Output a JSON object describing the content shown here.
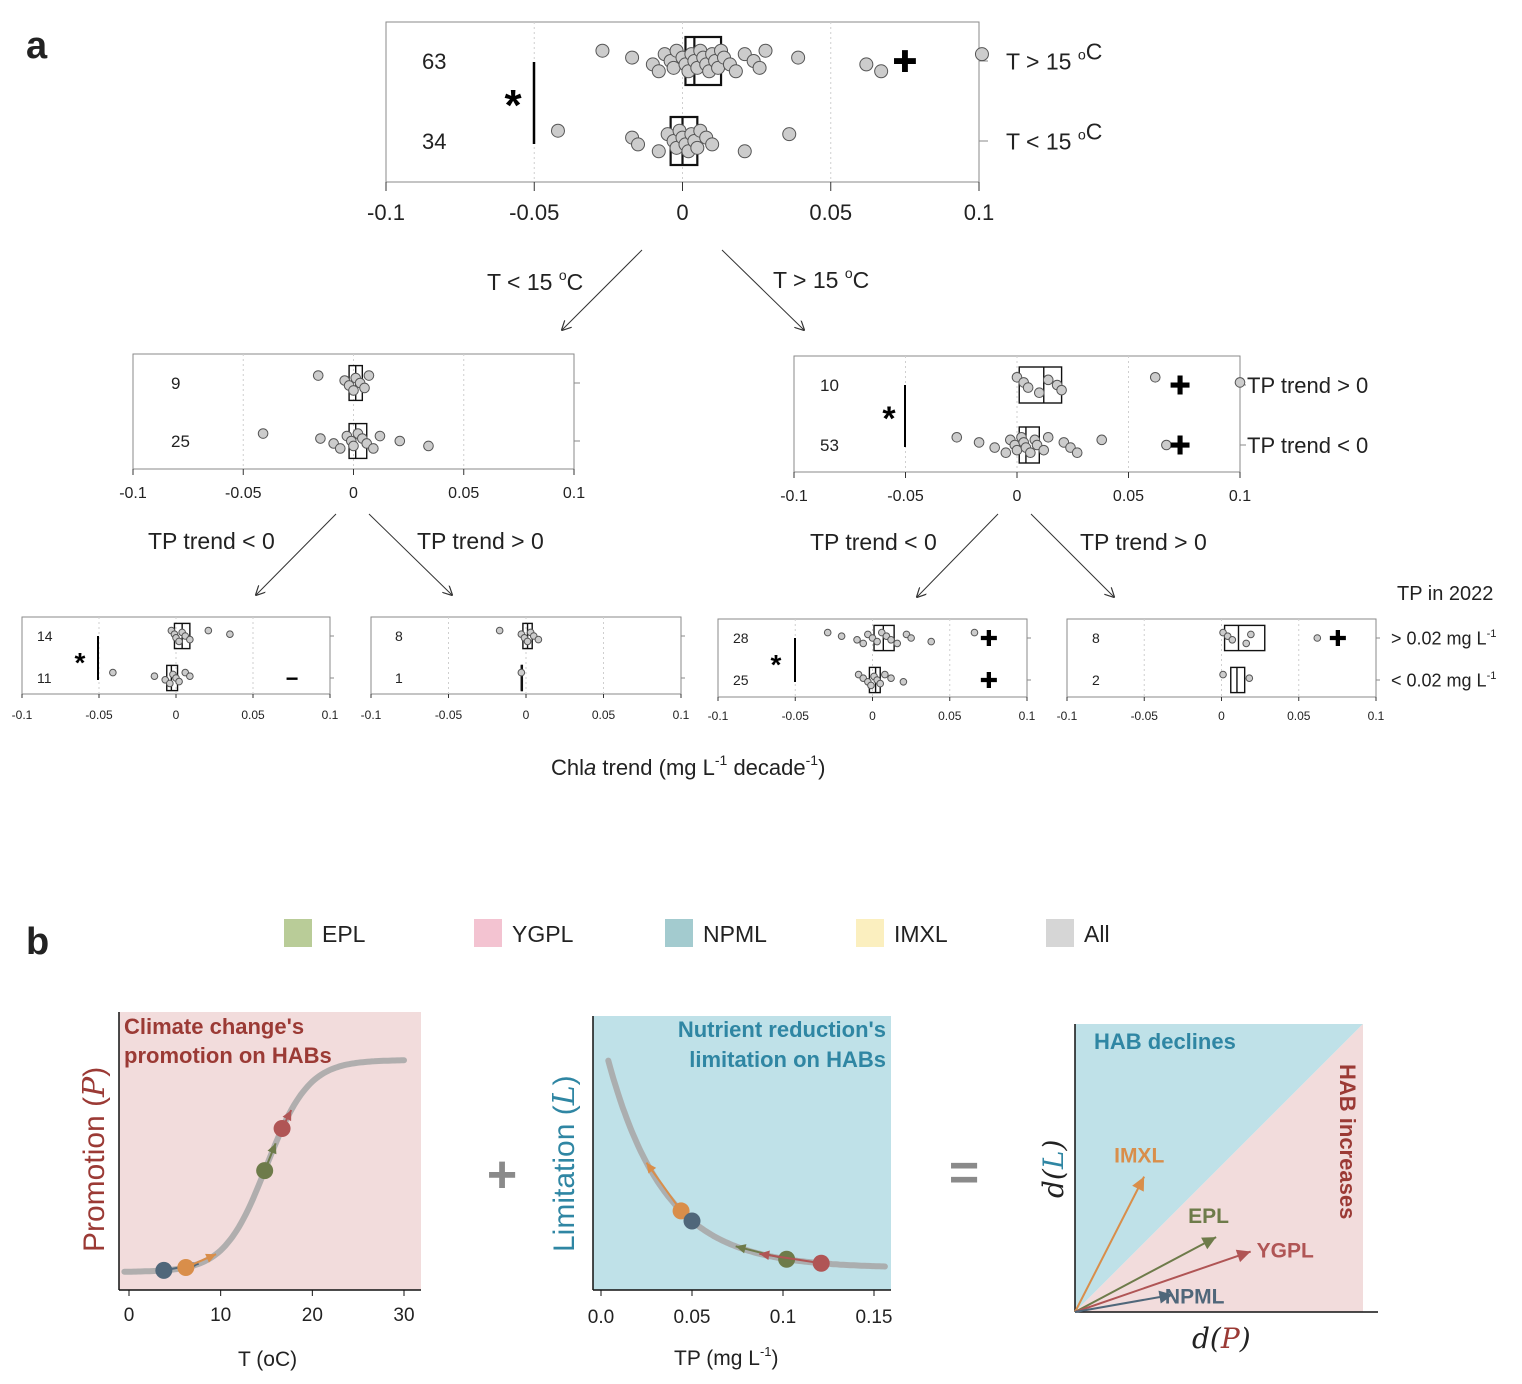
{
  "figure": {
    "panel_a_label": "a",
    "panel_b_label": "b",
    "x_axis_title": "Chla trend (mg L-1 decade-1)",
    "x_axis_title_parts": {
      "pre": "Chl",
      "ital": "a",
      "mid": " trend (mg L",
      "sup1": "-1",
      "mid2": " decade",
      "sup2": "-1",
      "post": ")"
    },
    "tp_2022_heading": "TP in 2022"
  },
  "tree_arrow_labels": {
    "top_left": "T < 15 oC",
    "top_right": "T > 15 oC",
    "mid_left_left": "TP trend < 0",
    "mid_left_right": "TP trend > 0",
    "mid_right_left": "TP trend < 0",
    "mid_right_right": "TP trend > 0"
  },
  "colors": {
    "point_fill": "#cccccc",
    "point_stroke": "#555555",
    "promotion_bg": "#f2dcdc",
    "limitation_bg": "#bfe1e8",
    "curve": "#a8a8a8",
    "title_red": "#9b3a35",
    "title_blue": "#2f86a3",
    "EPL": "#6e7b4a",
    "YGPL": "#b05555",
    "NPML": "#50677a",
    "IMXL": "#d98e4a"
  },
  "chart_data": [
    {
      "type": "boxplot",
      "panel": "a-top",
      "xlim": [
        -0.1,
        0.1
      ],
      "xticks": [
        "-0.1",
        "-0.05",
        "0",
        "0.05",
        "0.1"
      ],
      "groups": [
        {
          "label": "T > 15 oC",
          "n": "63",
          "box": [
            0.001,
            0.004,
            0.013
          ],
          "marker": "+",
          "points": [
            -0.027,
            -0.017,
            -0.01,
            -0.008,
            -0.006,
            -0.004,
            -0.003,
            -0.002,
            0.0,
            0.001,
            0.002,
            0.003,
            0.004,
            0.005,
            0.006,
            0.007,
            0.008,
            0.009,
            0.01,
            0.011,
            0.012,
            0.013,
            0.014,
            0.016,
            0.018,
            0.021,
            0.024,
            0.026,
            0.028,
            0.039,
            0.062,
            0.067,
            0.101
          ]
        },
        {
          "label": "T < 15 oC",
          "n": "34",
          "box": [
            -0.004,
            0.0,
            0.005
          ],
          "marker": "",
          "points": [
            -0.042,
            -0.017,
            -0.015,
            -0.008,
            -0.005,
            -0.003,
            -0.002,
            -0.001,
            0.0,
            0.001,
            0.002,
            0.003,
            0.004,
            0.005,
            0.006,
            0.008,
            0.01,
            0.021,
            0.036
          ]
        }
      ],
      "significance": "*"
    },
    {
      "type": "boxplot",
      "panel": "a-mid-left",
      "xlim": [
        -0.1,
        0.1
      ],
      "xticks": [
        "-0.1",
        "-0.05",
        "0",
        "0.05",
        "0.1"
      ],
      "groups": [
        {
          "label": "",
          "n": "9",
          "box": [
            -0.002,
            0.001,
            0.004
          ],
          "marker": "",
          "points": [
            -0.016,
            -0.004,
            -0.002,
            0.0,
            0.001,
            0.003,
            0.005,
            0.007
          ]
        },
        {
          "label": "",
          "n": "25",
          "box": [
            -0.002,
            0.001,
            0.006
          ],
          "marker": "",
          "points": [
            -0.041,
            -0.015,
            -0.009,
            -0.006,
            -0.003,
            -0.001,
            0.0,
            0.002,
            0.004,
            0.006,
            0.009,
            0.012,
            0.021,
            0.034
          ]
        }
      ],
      "significance": ""
    },
    {
      "type": "boxplot",
      "panel": "a-mid-right",
      "xlim": [
        -0.1,
        0.1
      ],
      "xticks": [
        "-0.1",
        "-0.05",
        "0",
        "0.05",
        "0.1"
      ],
      "groups": [
        {
          "label": "TP trend > 0",
          "n": "10",
          "box": [
            0.001,
            0.012,
            0.02
          ],
          "marker": "+",
          "points": [
            0.0,
            0.003,
            0.005,
            0.01,
            0.014,
            0.018,
            0.02,
            0.062,
            0.1
          ]
        },
        {
          "label": "TP trend < 0",
          "n": "53",
          "box": [
            0.001,
            0.004,
            0.01
          ],
          "marker": "+",
          "points": [
            -0.027,
            -0.017,
            -0.01,
            -0.005,
            -0.003,
            -0.001,
            0.0,
            0.002,
            0.003,
            0.004,
            0.006,
            0.008,
            0.009,
            0.012,
            0.014,
            0.021,
            0.024,
            0.027,
            0.038,
            0.067
          ]
        }
      ],
      "significance": "*"
    },
    {
      "type": "boxplot",
      "panel": "a-bottom-1",
      "xlim": [
        -0.1,
        0.1
      ],
      "xticks": [
        "-0.1",
        "-0.05",
        "0",
        "0.05",
        "0.1"
      ],
      "groups": [
        {
          "label": "",
          "n": "14",
          "box": [
            -0.001,
            0.004,
            0.009
          ],
          "marker": "",
          "points": [
            -0.003,
            -0.001,
            0.0,
            0.002,
            0.004,
            0.006,
            0.009,
            0.021,
            0.035
          ]
        },
        {
          "label": "",
          "n": "11",
          "box": [
            -0.006,
            -0.003,
            0.001
          ],
          "marker": "-",
          "points": [
            -0.041,
            -0.014,
            -0.007,
            -0.004,
            -0.002,
            0.0,
            0.002,
            0.006,
            0.009
          ]
        }
      ],
      "significance": "*"
    },
    {
      "type": "boxplot",
      "panel": "a-bottom-2",
      "xlim": [
        -0.1,
        0.1
      ],
      "xticks": [
        "-0.1",
        "-0.05",
        "0",
        "0.05",
        "0.1"
      ],
      "groups": [
        {
          "label": "",
          "n": "8",
          "box": [
            -0.002,
            0.001,
            0.004
          ],
          "marker": "",
          "points": [
            -0.017,
            -0.003,
            -0.001,
            0.001,
            0.003,
            0.005,
            0.008
          ]
        },
        {
          "label": "",
          "n": "1",
          "box": [
            -0.003,
            -0.003,
            -0.003
          ],
          "marker": "",
          "points": [
            -0.003
          ]
        }
      ],
      "significance": ""
    },
    {
      "type": "boxplot",
      "panel": "a-bottom-3",
      "xlim": [
        -0.1,
        0.1
      ],
      "xticks": [
        "-0.1",
        "-0.05",
        "0",
        "0.05",
        "0.1"
      ],
      "groups": [
        {
          "label": "",
          "n": "28",
          "box": [
            0.001,
            0.007,
            0.014
          ],
          "marker": "+",
          "points": [
            -0.029,
            -0.02,
            -0.01,
            -0.006,
            -0.003,
            0.0,
            0.003,
            0.006,
            0.009,
            0.012,
            0.016,
            0.022,
            0.025,
            0.038,
            0.066
          ]
        },
        {
          "label": "",
          "n": "25",
          "box": [
            -0.002,
            0.002,
            0.005
          ],
          "marker": "+",
          "points": [
            -0.009,
            -0.006,
            -0.003,
            -0.001,
            0.001,
            0.003,
            0.005,
            0.008,
            0.012,
            0.02
          ]
        }
      ],
      "significance": "*"
    },
    {
      "type": "boxplot",
      "panel": "a-bottom-4",
      "xlim": [
        -0.1,
        0.1
      ],
      "xticks": [
        "-0.1",
        "-0.05",
        "0",
        "0.05",
        "0.1"
      ],
      "groups": [
        {
          "label": "> 0.02 mg L-1",
          "n": "8",
          "box": [
            0.002,
            0.011,
            0.028
          ],
          "marker": "+",
          "points": [
            0.001,
            0.004,
            0.007,
            0.016,
            0.019,
            0.062
          ]
        },
        {
          "label": "< 0.02 mg L-1",
          "n": "2",
          "box": [
            0.006,
            0.01,
            0.015
          ],
          "marker": "",
          "points": [
            0.001,
            0.018
          ]
        }
      ],
      "significance": ""
    },
    {
      "type": "line",
      "panel": "b-promotion",
      "title": "Climate change's promotion on HABs",
      "xlabel": "T (oC)",
      "ylabel": "Promotion (P)",
      "xticks": [
        0,
        10,
        20,
        30
      ],
      "xlim": [
        -1,
        32
      ],
      "ylim": [
        0,
        1
      ],
      "points": [
        {
          "name": "NPML",
          "x": 3.8,
          "y": 0.025,
          "to_x": 7.6
        },
        {
          "name": "IMXL",
          "x": 6.2,
          "y": 0.035,
          "to_x": 9.5
        },
        {
          "name": "EPL",
          "x": 14.8,
          "y": 0.45,
          "to_x": 16.0
        },
        {
          "name": "YGPL",
          "x": 16.7,
          "y": 0.64,
          "to_x": 17.7
        }
      ]
    },
    {
      "type": "line",
      "panel": "b-limitation",
      "title": "Nutrient reduction's limitation on HABs",
      "xlabel": "TP (mg L-1)",
      "ylabel": "Limitation (L)",
      "xticks": [
        "0.0",
        "0.05",
        "0.1",
        "0.15"
      ],
      "xlim": [
        -0.004,
        0.16
      ],
      "ylim": [
        0,
        1
      ],
      "points": [
        {
          "name": "IMXL",
          "x": 0.044,
          "y": 0.395,
          "to_x": 0.025
        },
        {
          "name": "NPML",
          "x": 0.05,
          "y": 0.34,
          "to_x": 0.05
        },
        {
          "name": "EPL",
          "x": 0.102,
          "y": 0.04,
          "to_x": 0.074
        },
        {
          "name": "YGPL",
          "x": 0.121,
          "y": 0.015,
          "to_x": 0.087
        }
      ]
    },
    {
      "type": "vector",
      "panel": "b-result",
      "xlabel": "d(P)",
      "ylabel": "d(L)",
      "upper_region": "HAB declines",
      "lower_region": "HAB increases",
      "vectors": [
        {
          "name": "IMXL",
          "dx": 0.24,
          "dy": 0.47
        },
        {
          "name": "EPL",
          "dx": 0.49,
          "dy": 0.26
        },
        {
          "name": "YGPL",
          "dx": 0.61,
          "dy": 0.21
        },
        {
          "name": "NPML",
          "dx": 0.34,
          "dy": 0.06
        }
      ]
    }
  ],
  "legend": [
    {
      "name": "EPL",
      "color": "#b9cc98"
    },
    {
      "name": "YGPL",
      "color": "#f3c3d1"
    },
    {
      "name": "NPML",
      "color": "#a3cbcf"
    },
    {
      "name": "IMXL",
      "color": "#fbefbf"
    },
    {
      "name": "All",
      "color": "#d6d6d6"
    }
  ],
  "operators": {
    "plus": "+",
    "equals": "="
  }
}
